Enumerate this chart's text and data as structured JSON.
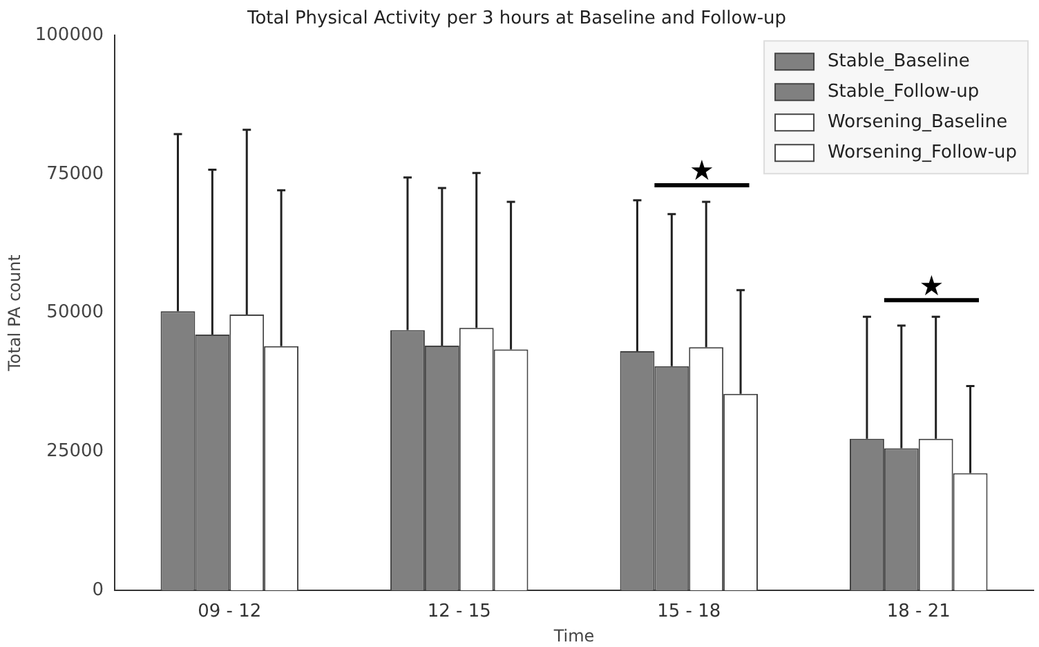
{
  "chart_data": {
    "type": "bar",
    "title": "Total Physical Activity per 3 hours at Baseline and Follow-up",
    "xlabel": "Time",
    "ylabel": "Total PA count",
    "categories": [
      "09 - 12",
      "12 - 15",
      "15 - 18",
      "18 - 21"
    ],
    "series": [
      {
        "name": "Stable_Baseline",
        "color": "#808080",
        "values": [
          50300,
          46900,
          43100,
          27300
        ],
        "errors": [
          [
            50300,
            82200
          ],
          [
            46900,
            74400
          ],
          [
            43100,
            70300
          ],
          [
            27300,
            49300
          ]
        ]
      },
      {
        "name": "Stable_Follow-up",
        "color": "#808080",
        "values": [
          46100,
          44100,
          40400,
          25600
        ],
        "errors": [
          [
            46100,
            75800
          ],
          [
            44100,
            72500
          ],
          [
            40400,
            67800
          ],
          [
            25600,
            47700
          ]
        ]
      },
      {
        "name": "Worsening_Baseline",
        "color": "#ffffff",
        "values": [
          49700,
          47300,
          43800,
          27300
        ],
        "errors": [
          [
            49700,
            83000
          ],
          [
            47300,
            75200
          ],
          [
            43800,
            70000
          ],
          [
            27300,
            49300
          ]
        ]
      },
      {
        "name": "Worsening_Follow-up",
        "color": "#ffffff",
        "values": [
          44000,
          43400,
          35400,
          21100
        ],
        "errors": [
          [
            44000,
            72100
          ],
          [
            43400,
            70000
          ],
          [
            35400,
            54100
          ],
          [
            21100,
            36800
          ]
        ]
      }
    ],
    "annotations": [
      "★",
      "★"
    ],
    "ylim": [
      0,
      100000
    ],
    "yticks": [
      0,
      25000,
      50000,
      75000,
      100000
    ],
    "grid": false,
    "legend": "top right"
  }
}
